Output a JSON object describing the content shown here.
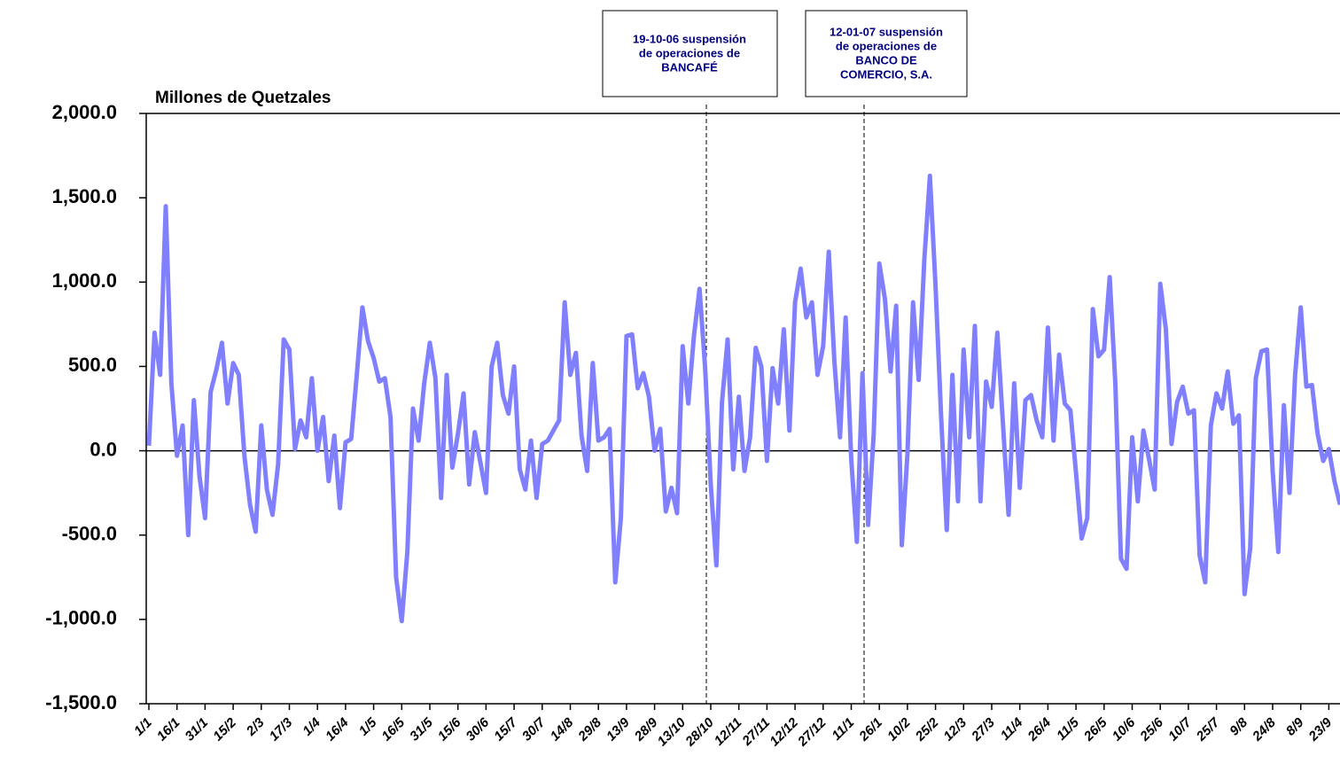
{
  "chart_data": {
    "type": "line",
    "y_label": "Millones de Quetzales",
    "categories": [
      "1/1",
      null,
      null,
      null,
      null,
      "16/1",
      null,
      null,
      null,
      null,
      "31/1",
      null,
      null,
      null,
      null,
      "15/2",
      null,
      null,
      null,
      null,
      "2/3",
      null,
      null,
      null,
      null,
      "17/3",
      null,
      null,
      null,
      null,
      "1/4",
      null,
      null,
      null,
      null,
      "16/4",
      null,
      null,
      null,
      null,
      "1/5",
      null,
      null,
      null,
      null,
      "16/5",
      null,
      null,
      null,
      null,
      "31/5",
      null,
      null,
      null,
      null,
      "15/6",
      null,
      null,
      null,
      null,
      "30/6",
      null,
      null,
      null,
      null,
      "15/7",
      null,
      null,
      null,
      null,
      "30/7",
      null,
      null,
      null,
      null,
      "14/8",
      null,
      null,
      null,
      null,
      "29/8",
      null,
      null,
      null,
      null,
      "13/9",
      null,
      null,
      null,
      null,
      "28/9",
      null,
      null,
      null,
      null,
      "13/10",
      null,
      null,
      null,
      null,
      "28/10",
      null,
      null,
      null,
      null,
      "12/11",
      null,
      null,
      null,
      null,
      "27/11",
      null,
      null,
      null,
      null,
      "12/12",
      null,
      null,
      null,
      null,
      "27/12",
      null,
      null,
      null,
      null,
      "11/1",
      null,
      null,
      null,
      null,
      "26/1",
      null,
      null,
      null,
      null,
      "10/2",
      null,
      null,
      null,
      null,
      "25/2",
      null,
      null,
      null,
      null,
      "12/3",
      null,
      null,
      null,
      null,
      "27/3",
      null,
      null,
      null,
      null,
      "11/4",
      null,
      null,
      null,
      null,
      "26/4",
      null,
      null,
      null,
      null,
      "11/5",
      null,
      null,
      null,
      null,
      "26/5",
      null,
      null,
      null,
      null,
      "10/6",
      null,
      null,
      null,
      null,
      "25/6",
      null,
      null,
      null,
      null,
      "10/7",
      null,
      null,
      null,
      null,
      "25/7",
      null,
      null,
      null,
      null,
      "9/8",
      null,
      null,
      null,
      null,
      "24/8",
      null,
      null,
      null,
      null,
      "8/9",
      null,
      null,
      null,
      null,
      "23/9",
      null,
      null
    ],
    "values": [
      30,
      700,
      450,
      1450,
      400,
      -30,
      150,
      -500,
      300,
      -150,
      -400,
      350,
      480,
      640,
      280,
      520,
      450,
      -30,
      -320,
      -480,
      150,
      -230,
      -380,
      -80,
      660,
      600,
      10,
      180,
      80,
      430,
      0,
      200,
      -180,
      90,
      -340,
      50,
      70,
      450,
      850,
      650,
      550,
      410,
      430,
      200,
      -750,
      -1010,
      -600,
      250,
      60,
      400,
      640,
      430,
      -280,
      450,
      -100,
      100,
      340,
      -200,
      110,
      -70,
      -250,
      500,
      640,
      330,
      220,
      500,
      -110,
      -230,
      60,
      -280,
      40,
      60,
      120,
      180,
      880,
      450,
      580,
      90,
      -120,
      520,
      60,
      80,
      130,
      -780,
      -400,
      680,
      690,
      370,
      460,
      320,
      0,
      130,
      -360,
      -220,
      -370,
      620,
      280,
      680,
      960,
      490,
      -200,
      -680,
      290,
      660,
      -110,
      320,
      -120,
      80,
      610,
      500,
      -60,
      490,
      280,
      720,
      120,
      880,
      1080,
      790,
      880,
      450,
      620,
      1180,
      530,
      80,
      790,
      -50,
      -540,
      460,
      -440,
      100,
      1110,
      900,
      470,
      860,
      -560,
      -20,
      880,
      420,
      1130,
      1630,
      980,
      200,
      -470,
      450,
      -300,
      600,
      80,
      740,
      -300,
      410,
      260,
      700,
      160,
      -380,
      400,
      -220,
      300,
      330,
      180,
      80,
      730,
      60,
      570,
      280,
      240,
      -130,
      -520,
      -400,
      840,
      560,
      600,
      1030,
      400,
      -640,
      -700,
      80,
      -300,
      120,
      -50,
      -230,
      990,
      720,
      40,
      290,
      380,
      220,
      240,
      -620,
      -780,
      150,
      340,
      250,
      470,
      160,
      210,
      -850,
      -580,
      430,
      590,
      600,
      -120,
      -600,
      270,
      -250,
      450,
      850,
      380,
      390,
      100,
      -60,
      10,
      -180,
      -320
    ],
    "color": "#8080ff",
    "ylim": [
      -1500,
      2000
    ],
    "yticks": [
      {
        "value": -1500,
        "label": "-1,500.0"
      },
      {
        "value": -1000,
        "label": "-1,000.0"
      },
      {
        "value": -500,
        "label": "-500.0"
      },
      {
        "value": 0,
        "label": "0.0"
      },
      {
        "value": 500,
        "label": "500.0"
      },
      {
        "value": 1000,
        "label": "1,000.0"
      },
      {
        "value": 1500,
        "label": "1,500.0"
      },
      {
        "value": 2000,
        "label": "2,000.0"
      }
    ],
    "annotations": [
      [
        "19-10-06 suspensión",
        "de operaciones de",
        "BANCAFÉ"
      ],
      [
        "12-01-07 suspensión",
        "de operaciones de",
        "BANCO DE",
        "COMERCIO, S.A."
      ]
    ]
  }
}
